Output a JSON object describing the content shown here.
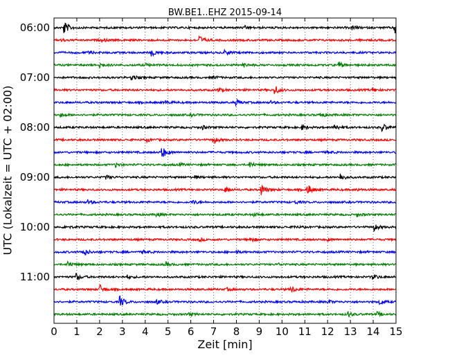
{
  "chart_data": {
    "type": "line",
    "title": "BW.BE1..EHZ 2015-09-14",
    "xlabel": "Zeit  [min]",
    "ylabel": "UTC (Lokalzeit = UTC + 02:00)",
    "xlim": [
      0,
      15
    ],
    "x_ticks": [
      "0",
      "1",
      "2",
      "3",
      "4",
      "5",
      "6",
      "7",
      "8",
      "9",
      "10",
      "11",
      "12",
      "13",
      "14",
      "15"
    ],
    "y_ticks": [
      "06:00",
      "07:00",
      "08:00",
      "09:00",
      "10:00",
      "11:00"
    ],
    "vertical_grid": "dotted",
    "colors": [
      "#000000",
      "#ff0000",
      "#0000ff",
      "#008000"
    ],
    "series": [
      {
        "start": "06:00",
        "color": "#000000",
        "events": [
          [
            0.45,
            1.0
          ],
          [
            14.95,
            1.0
          ],
          [
            13.1,
            0.3
          ],
          [
            8.4,
            0.2
          ]
        ]
      },
      {
        "start": "06:15",
        "color": "#ff0000",
        "events": [
          [
            6.4,
            0.6
          ],
          [
            2.1,
            0.25
          ],
          [
            0.3,
            0.2
          ]
        ]
      },
      {
        "start": "06:30",
        "color": "#0000ff",
        "events": [
          [
            4.3,
            0.5
          ],
          [
            7.5,
            0.35
          ],
          [
            1.5,
            0.2
          ]
        ]
      },
      {
        "start": "06:45",
        "color": "#008000",
        "events": [
          [
            2.0,
            0.4
          ],
          [
            12.5,
            0.45
          ],
          [
            8.3,
            0.3
          ],
          [
            4.0,
            0.25
          ]
        ]
      },
      {
        "start": "07:00",
        "color": "#000000",
        "events": [
          [
            3.4,
            0.45
          ],
          [
            7.0,
            0.2
          ]
        ]
      },
      {
        "start": "07:15",
        "color": "#ff0000",
        "events": [
          [
            9.7,
            0.7
          ],
          [
            7.2,
            0.3
          ],
          [
            14.0,
            0.3
          ]
        ]
      },
      {
        "start": "07:30",
        "color": "#0000ff",
        "events": [
          [
            8.0,
            0.4
          ],
          [
            4.9,
            0.25
          ],
          [
            9.5,
            0.2
          ]
        ]
      },
      {
        "start": "07:45",
        "color": "#008000",
        "events": [
          [
            11.7,
            0.4
          ],
          [
            0.3,
            0.3
          ],
          [
            6.0,
            0.2
          ]
        ]
      },
      {
        "start": "08:00",
        "color": "#000000",
        "events": [
          [
            12.3,
            0.55
          ],
          [
            14.4,
            0.6
          ],
          [
            10.9,
            0.35
          ],
          [
            6.5,
            0.3
          ]
        ]
      },
      {
        "start": "08:15",
        "color": "#ff0000",
        "events": [
          [
            7.0,
            0.55
          ],
          [
            4.1,
            0.3
          ]
        ]
      },
      {
        "start": "08:30",
        "color": "#0000ff",
        "events": [
          [
            4.75,
            0.9
          ],
          [
            12.0,
            0.2
          ]
        ]
      },
      {
        "start": "08:45",
        "color": "#008000",
        "events": [
          [
            2.7,
            0.4
          ],
          [
            8.6,
            0.45
          ],
          [
            5.5,
            0.2
          ]
        ]
      },
      {
        "start": "09:00",
        "color": "#000000",
        "events": [
          [
            12.55,
            0.6
          ],
          [
            2.3,
            0.3
          ],
          [
            6.2,
            0.2
          ]
        ]
      },
      {
        "start": "09:15",
        "color": "#ff0000",
        "events": [
          [
            9.1,
            0.8
          ],
          [
            11.1,
            0.95
          ],
          [
            7.5,
            0.4
          ],
          [
            13.3,
            0.2
          ]
        ]
      },
      {
        "start": "09:30",
        "color": "#0000ff",
        "events": [
          [
            1.5,
            0.35
          ],
          [
            6.1,
            0.3
          ],
          [
            10.6,
            0.2
          ]
        ]
      },
      {
        "start": "09:45",
        "color": "#008000",
        "events": [
          [
            4.5,
            0.3
          ],
          [
            8.8,
            0.25
          ],
          [
            13.3,
            0.3
          ]
        ]
      },
      {
        "start": "10:00",
        "color": "#000000",
        "events": [
          [
            14.05,
            0.5
          ],
          [
            0.5,
            0.25
          ],
          [
            10.5,
            0.2
          ]
        ]
      },
      {
        "start": "10:15",
        "color": "#ff0000",
        "events": [
          [
            8.6,
            0.4
          ],
          [
            6.4,
            0.2
          ],
          [
            12.0,
            0.2
          ]
        ]
      },
      {
        "start": "10:30",
        "color": "#0000ff",
        "events": [
          [
            1.3,
            0.6
          ],
          [
            3.9,
            0.3
          ],
          [
            8.0,
            0.2
          ]
        ]
      },
      {
        "start": "10:45",
        "color": "#008000",
        "events": [
          [
            0.6,
            0.6
          ],
          [
            4.9,
            0.3
          ],
          [
            9.8,
            0.2
          ]
        ]
      },
      {
        "start": "11:00",
        "color": "#000000",
        "events": [
          [
            1.0,
            0.5
          ],
          [
            14.0,
            0.4
          ],
          [
            3.2,
            0.25
          ]
        ]
      },
      {
        "start": "11:15",
        "color": "#ff0000",
        "events": [
          [
            2.0,
            0.75
          ],
          [
            10.4,
            0.55
          ],
          [
            7.6,
            0.2
          ]
        ]
      },
      {
        "start": "11:30",
        "color": "#0000ff",
        "events": [
          [
            2.9,
            0.85
          ],
          [
            14.3,
            0.4
          ],
          [
            4.5,
            0.35
          ],
          [
            12.0,
            0.25
          ]
        ]
      },
      {
        "start": "11:45",
        "color": "#008000",
        "events": [
          [
            12.9,
            0.4
          ],
          [
            14.2,
            0.3
          ],
          [
            5.9,
            0.2
          ]
        ]
      }
    ]
  }
}
